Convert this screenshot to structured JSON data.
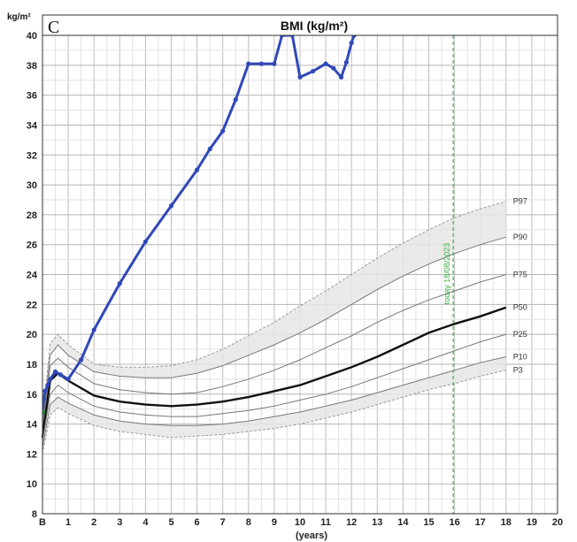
{
  "chart_data": {
    "type": "line",
    "panel_letter": "C",
    "title": "BMI (kg/m²)",
    "y_unit_label": "kg/m²",
    "xlabel": "(years)",
    "xlim": [
      0,
      20
    ],
    "ylim": [
      8,
      40
    ],
    "x_ticks": [
      "B",
      "1",
      "2",
      "3",
      "4",
      "5",
      "6",
      "7",
      "8",
      "9",
      "10",
      "11",
      "12",
      "13",
      "14",
      "15",
      "16",
      "17",
      "18",
      "19",
      "20"
    ],
    "y_ticks": [
      "8",
      "10",
      "12",
      "14",
      "16",
      "18",
      "20",
      "22",
      "24",
      "26",
      "28",
      "30",
      "32",
      "34",
      "36",
      "38",
      "40"
    ],
    "grid": true,
    "colors": {
      "patient": "#3048b8",
      "p50": "#111111",
      "percentile": "#777777",
      "band": "#e6e6e6",
      "today": "#3cb043",
      "birth_point": "#2e8b3a"
    },
    "today_line": {
      "x": 15.95,
      "label": "today 18/08/2023"
    },
    "percentile_curves": [
      {
        "name": "P97",
        "points": [
          [
            0,
            14.2
          ],
          [
            0.3,
            19.4
          ],
          [
            0.6,
            20.0
          ],
          [
            1,
            19.3
          ],
          [
            2,
            18.0
          ],
          [
            3,
            17.8
          ],
          [
            4,
            17.8
          ],
          [
            5,
            17.9
          ],
          [
            6,
            18.3
          ],
          [
            7,
            19.0
          ],
          [
            8,
            19.9
          ],
          [
            9,
            20.8
          ],
          [
            10,
            21.9
          ],
          [
            11,
            22.9
          ],
          [
            12,
            24.0
          ],
          [
            13,
            25.1
          ],
          [
            14,
            26.1
          ],
          [
            15,
            27.0
          ],
          [
            16,
            27.8
          ],
          [
            17,
            28.4
          ],
          [
            18,
            28.9
          ]
        ]
      },
      {
        "name": "P90",
        "points": [
          [
            0,
            13.8
          ],
          [
            0.3,
            18.6
          ],
          [
            0.6,
            19.3
          ],
          [
            1,
            18.6
          ],
          [
            2,
            17.5
          ],
          [
            3,
            17.2
          ],
          [
            4,
            17.1
          ],
          [
            5,
            17.1
          ],
          [
            6,
            17.4
          ],
          [
            7,
            17.9
          ],
          [
            8,
            18.6
          ],
          [
            9,
            19.3
          ],
          [
            10,
            20.1
          ],
          [
            11,
            21.0
          ],
          [
            12,
            22.0
          ],
          [
            13,
            23.0
          ],
          [
            14,
            23.9
          ],
          [
            15,
            24.7
          ],
          [
            16,
            25.4
          ],
          [
            17,
            26.0
          ],
          [
            18,
            26.5
          ]
        ]
      },
      {
        "name": "P75",
        "points": [
          [
            0,
            13.4
          ],
          [
            0.3,
            17.9
          ],
          [
            0.6,
            18.4
          ],
          [
            1,
            17.8
          ],
          [
            2,
            16.7
          ],
          [
            3,
            16.3
          ],
          [
            4,
            16.1
          ],
          [
            5,
            16.0
          ],
          [
            6,
            16.1
          ],
          [
            7,
            16.5
          ],
          [
            8,
            17.0
          ],
          [
            9,
            17.6
          ],
          [
            10,
            18.3
          ],
          [
            11,
            19.1
          ],
          [
            12,
            19.9
          ],
          [
            13,
            20.8
          ],
          [
            14,
            21.6
          ],
          [
            15,
            22.3
          ],
          [
            16,
            22.9
          ],
          [
            17,
            23.5
          ],
          [
            18,
            24.0
          ]
        ]
      },
      {
        "name": "P50",
        "points": [
          [
            0,
            13.1
          ],
          [
            0.3,
            16.9
          ],
          [
            0.6,
            17.4
          ],
          [
            1,
            16.9
          ],
          [
            2,
            15.9
          ],
          [
            3,
            15.5
          ],
          [
            4,
            15.3
          ],
          [
            5,
            15.2
          ],
          [
            6,
            15.3
          ],
          [
            7,
            15.5
          ],
          [
            8,
            15.8
          ],
          [
            9,
            16.2
          ],
          [
            10,
            16.6
          ],
          [
            11,
            17.2
          ],
          [
            12,
            17.8
          ],
          [
            13,
            18.5
          ],
          [
            14,
            19.3
          ],
          [
            15,
            20.1
          ],
          [
            16,
            20.7
          ],
          [
            17,
            21.2
          ],
          [
            18,
            21.8
          ]
        ]
      },
      {
        "name": "P25",
        "points": [
          [
            0,
            12.8
          ],
          [
            0.3,
            16.0
          ],
          [
            0.6,
            16.6
          ],
          [
            1,
            16.1
          ],
          [
            2,
            15.2
          ],
          [
            3,
            14.8
          ],
          [
            4,
            14.6
          ],
          [
            5,
            14.5
          ],
          [
            6,
            14.5
          ],
          [
            7,
            14.7
          ],
          [
            8,
            14.9
          ],
          [
            9,
            15.2
          ],
          [
            10,
            15.6
          ],
          [
            11,
            16.0
          ],
          [
            12,
            16.5
          ],
          [
            13,
            17.1
          ],
          [
            14,
            17.7
          ],
          [
            15,
            18.3
          ],
          [
            16,
            18.9
          ],
          [
            17,
            19.5
          ],
          [
            18,
            20.0
          ]
        ]
      },
      {
        "name": "P10",
        "points": [
          [
            0,
            12.4
          ],
          [
            0.3,
            15.3
          ],
          [
            0.6,
            15.8
          ],
          [
            1,
            15.4
          ],
          [
            2,
            14.6
          ],
          [
            3,
            14.2
          ],
          [
            4,
            14.0
          ],
          [
            5,
            13.9
          ],
          [
            6,
            13.9
          ],
          [
            7,
            14.0
          ],
          [
            8,
            14.2
          ],
          [
            9,
            14.5
          ],
          [
            10,
            14.8
          ],
          [
            11,
            15.2
          ],
          [
            12,
            15.6
          ],
          [
            13,
            16.1
          ],
          [
            14,
            16.6
          ],
          [
            15,
            17.1
          ],
          [
            16,
            17.6
          ],
          [
            17,
            18.1
          ],
          [
            18,
            18.5
          ]
        ]
      },
      {
        "name": "P3",
        "points": [
          [
            0,
            12.0
          ],
          [
            0.3,
            14.6
          ],
          [
            0.6,
            15.1
          ],
          [
            1,
            14.7
          ],
          [
            2,
            13.9
          ],
          [
            3,
            13.5
          ],
          [
            4,
            13.3
          ],
          [
            5,
            13.1
          ],
          [
            6,
            13.2
          ],
          [
            7,
            13.3
          ],
          [
            8,
            13.5
          ],
          [
            9,
            13.7
          ],
          [
            10,
            14.0
          ],
          [
            11,
            14.4
          ],
          [
            12,
            14.8
          ],
          [
            13,
            15.3
          ],
          [
            14,
            15.8
          ],
          [
            15,
            16.3
          ],
          [
            16,
            16.7
          ],
          [
            17,
            17.2
          ],
          [
            18,
            17.6
          ]
        ]
      }
    ],
    "patient_series": {
      "points": [
        [
          0,
          14.8
        ],
        [
          0.05,
          15.7
        ],
        [
          0.1,
          16.2
        ],
        [
          0.2,
          16.6
        ],
        [
          0.3,
          17.0
        ],
        [
          0.5,
          17.5
        ],
        [
          0.7,
          17.3
        ],
        [
          1,
          17.0
        ],
        [
          1.5,
          18.3
        ],
        [
          2,
          20.3
        ],
        [
          3,
          23.4
        ],
        [
          4,
          26.2
        ],
        [
          5,
          28.6
        ],
        [
          6,
          31.0
        ],
        [
          6.5,
          32.4
        ],
        [
          7,
          33.6
        ],
        [
          7.5,
          35.7
        ],
        [
          8,
          38.1
        ],
        [
          8.5,
          38.1
        ],
        [
          9,
          38.1
        ],
        [
          9.3,
          40.0
        ],
        [
          9.7,
          40.0
        ],
        [
          10,
          37.2
        ],
        [
          10.5,
          37.6
        ],
        [
          11,
          38.1
        ],
        [
          11.3,
          37.8
        ],
        [
          11.6,
          37.2
        ],
        [
          11.8,
          38.2
        ],
        [
          12,
          39.5
        ],
        [
          12.1,
          40.0
        ]
      ],
      "birth_point": [
        0,
        14.8
      ]
    }
  }
}
